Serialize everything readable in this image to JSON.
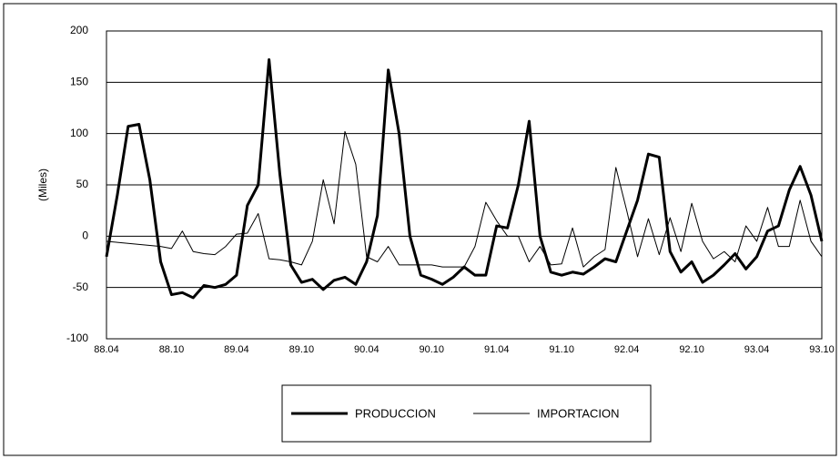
{
  "chart_data": {
    "type": "line",
    "y_label": "(Miles)",
    "categories": [
      "88.04",
      null,
      null,
      null,
      null,
      null,
      "88.10",
      null,
      null,
      null,
      null,
      null,
      "89.04",
      null,
      null,
      null,
      null,
      null,
      "89.10",
      null,
      null,
      null,
      null,
      null,
      "90.04",
      null,
      null,
      null,
      null,
      null,
      "90.10",
      null,
      null,
      null,
      null,
      null,
      "91.04",
      null,
      null,
      null,
      null,
      null,
      "91.10",
      null,
      null,
      null,
      null,
      null,
      "92.04",
      null,
      null,
      null,
      null,
      null,
      "92.10",
      null,
      null,
      null,
      null,
      null,
      "93.04",
      null,
      null,
      null,
      null,
      null,
      "93.10"
    ],
    "series": [
      {
        "name": "PRODUCCION",
        "color": "#000000",
        "width": 3,
        "values": [
          -20,
          40,
          107,
          109,
          55,
          -25,
          -57,
          -55,
          -60,
          -48,
          -50,
          -47,
          -38,
          30,
          50,
          172,
          60,
          -28,
          -45,
          -42,
          -52,
          -43,
          -40,
          -47,
          -25,
          20,
          162,
          100,
          0,
          -38,
          -42,
          -47,
          -40,
          -30,
          -38,
          -38,
          10,
          8,
          50,
          112,
          0,
          -35,
          -38,
          -35,
          -37,
          -30,
          -22,
          -25,
          5,
          35,
          80,
          77,
          -15,
          -35,
          -25,
          -45,
          -38,
          -28,
          -17,
          -32,
          -20,
          5,
          10,
          45,
          68,
          40,
          -5
        ]
      },
      {
        "name": "IMPORTACION",
        "color": "#000000",
        "width": 1,
        "values": [
          -5,
          -6,
          -7,
          -8,
          -9,
          -10,
          -12,
          5,
          -15,
          -17,
          -18,
          -10,
          2,
          3,
          22,
          -22,
          -23,
          -25,
          -28,
          -5,
          55,
          12,
          102,
          70,
          -20,
          -25,
          -10,
          -28,
          -28,
          -28,
          -28,
          -30,
          -30,
          -30,
          -10,
          33,
          15,
          0,
          0,
          -25,
          -10,
          -28,
          -27,
          8,
          -30,
          -20,
          -13,
          67,
          25,
          -20,
          17,
          -18,
          18,
          -15,
          32,
          -5,
          -22,
          -15,
          -25,
          10,
          -5,
          28,
          -10,
          -10,
          35,
          -5,
          -20
        ]
      }
    ],
    "ylim": [
      -100,
      200
    ],
    "yticks": [
      -100,
      -50,
      0,
      50,
      100,
      150,
      200
    ],
    "grid": true
  }
}
